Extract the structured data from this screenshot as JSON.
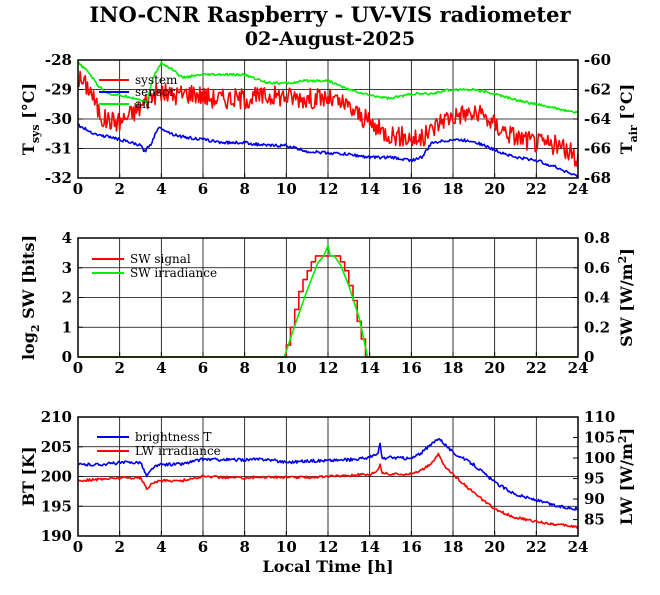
{
  "title": "INO-CNR Raspberry - UV-VIS radiometer",
  "subtitle": "02-August-2025",
  "colors": {
    "red": "#ff0000",
    "green": "#00ee00",
    "blue": "#0000ee",
    "axes": "#000000"
  },
  "chart_data": [
    {
      "type": "line",
      "xlim": [
        0,
        24
      ],
      "xticks": [
        0,
        2,
        4,
        6,
        8,
        10,
        12,
        14,
        16,
        18,
        20,
        22,
        24
      ],
      "ylabel_left": {
        "main": "T",
        "sub": "sys",
        "unit": "[°C]"
      },
      "ylim_left": [
        -32,
        -28
      ],
      "yticks_left": [
        -32,
        -31,
        -30,
        -29,
        -28
      ],
      "ylabel_right": {
        "main": "T",
        "sub": "air",
        "unit": "[°C]"
      },
      "ylim_right": [
        -68,
        -60
      ],
      "yticks_right": [
        -68,
        -66,
        -64,
        -62,
        -60
      ],
      "grid": true,
      "legend": [
        "system",
        "sensor",
        "air"
      ],
      "series": [
        {
          "name": "system",
          "axis": "left",
          "color": "#ff0000",
          "x": [
            0,
            0.3,
            0.6,
            0.9,
            1.2,
            2.0,
            3.0,
            3.5,
            4.0,
            4.5,
            5.5,
            6.5,
            8.0,
            9.5,
            11.0,
            12.0,
            13.0,
            14.5,
            15.5,
            16.5,
            17.5,
            18.5,
            19.5,
            20.0,
            21.0,
            22.0,
            23.0,
            23.5,
            24.0
          ],
          "y": [
            -28.6,
            -28.8,
            -29.0,
            -29.6,
            -30.0,
            -30.1,
            -29.6,
            -29.2,
            -29.1,
            -29.2,
            -29.1,
            -29.3,
            -29.3,
            -29.2,
            -29.3,
            -29.3,
            -29.6,
            -30.4,
            -30.6,
            -30.7,
            -30.0,
            -29.8,
            -29.9,
            -30.2,
            -30.6,
            -30.8,
            -30.9,
            -31.1,
            -31.3
          ],
          "noise": 0.35
        },
        {
          "name": "air",
          "axis": "right",
          "color": "#00ee00",
          "x": [
            0,
            0.5,
            1.0,
            1.5,
            2.0,
            2.5,
            3.0,
            3.3,
            3.6,
            4.0,
            4.5,
            5.0,
            6.0,
            7.0,
            8.0,
            9.0,
            10.0,
            11.0,
            12.0,
            13.0,
            14.0,
            15.0,
            16.0,
            17.0,
            17.5,
            18.0,
            19.0,
            20.0,
            21.0,
            22.0,
            23.0,
            24.0
          ],
          "y": [
            -60.2,
            -60.8,
            -61.8,
            -62.3,
            -62.4,
            -62.5,
            -62.7,
            -62.9,
            -61.2,
            -60.2,
            -60.6,
            -61.2,
            -61.0,
            -61.0,
            -61.0,
            -61.5,
            -61.6,
            -61.4,
            -61.4,
            -62.0,
            -62.4,
            -62.6,
            -62.3,
            -62.3,
            -62.1,
            -62.0,
            -62.0,
            -62.3,
            -62.7,
            -63.0,
            -63.3,
            -63.6
          ],
          "noise": 0.08
        },
        {
          "name": "sensor",
          "axis": "right",
          "color": "#0000ee",
          "x": [
            0,
            0.5,
            1.0,
            1.5,
            2.0,
            2.5,
            3.0,
            3.2,
            3.5,
            3.8,
            4.0,
            4.5,
            5.0,
            6.0,
            7.0,
            8.0,
            9.0,
            10.0,
            11.0,
            12.0,
            13.0,
            14.0,
            15.0,
            16.0,
            16.5,
            17.0,
            18.0,
            19.0,
            20.0,
            21.0,
            22.0,
            23.0,
            24.0
          ],
          "y": [
            -64.4,
            -64.8,
            -65.1,
            -65.2,
            -65.4,
            -65.6,
            -65.8,
            -66.2,
            -65.7,
            -64.7,
            -64.6,
            -65.0,
            -65.2,
            -65.4,
            -65.6,
            -65.6,
            -65.8,
            -65.8,
            -66.2,
            -66.3,
            -66.4,
            -66.6,
            -66.6,
            -66.8,
            -66.6,
            -65.6,
            -65.4,
            -65.5,
            -66.1,
            -66.6,
            -66.8,
            -67.3,
            -67.9
          ],
          "noise": 0.1
        }
      ]
    },
    {
      "type": "line",
      "xlim": [
        0,
        24
      ],
      "xticks": [
        0,
        2,
        4,
        6,
        8,
        10,
        12,
        14,
        16,
        18,
        20,
        22,
        24
      ],
      "ylabel_left": {
        "pre": "log",
        "sub": "2",
        "main": " SW [bits]"
      },
      "ylim_left": [
        0,
        4
      ],
      "yticks_left": [
        0,
        1,
        2,
        3,
        4
      ],
      "ylabel_right": {
        "main": "SW [W/m",
        "sup": "2",
        "unit": "]"
      },
      "ylim_right": [
        0,
        0.8
      ],
      "yticks_right": [
        0,
        0.2,
        0.4,
        0.6,
        0.8
      ],
      "grid": true,
      "legend": [
        "SW signal",
        "SW irradiance"
      ],
      "series": [
        {
          "name": "SW signal",
          "axis": "left",
          "color": "#ff0000",
          "step": true,
          "x": [
            0,
            9.8,
            10.0,
            10.2,
            10.4,
            10.6,
            10.8,
            11.0,
            11.2,
            11.4,
            11.6,
            11.8,
            12.0,
            12.2,
            12.4,
            12.6,
            12.8,
            13.0,
            13.2,
            13.4,
            13.6,
            13.8,
            14.0,
            24
          ],
          "y": [
            0,
            0,
            0.4,
            1.0,
            1.6,
            2.2,
            2.6,
            2.9,
            3.2,
            3.4,
            3.4,
            3.4,
            3.4,
            3.4,
            3.4,
            3.2,
            2.9,
            2.4,
            1.9,
            1.2,
            0.6,
            0,
            0,
            0
          ]
        },
        {
          "name": "SW irradiance",
          "axis": "right",
          "color": "#00ee00",
          "step": false,
          "x": [
            0,
            9.9,
            10.5,
            11.0,
            11.5,
            11.8,
            12.0,
            12.1,
            12.3,
            12.6,
            13.0,
            13.5,
            13.9,
            24
          ],
          "y": [
            0,
            0,
            0.25,
            0.45,
            0.63,
            0.68,
            0.75,
            0.68,
            0.68,
            0.62,
            0.48,
            0.26,
            0,
            0
          ]
        }
      ]
    },
    {
      "type": "line",
      "xlim": [
        0,
        24
      ],
      "xticks": [
        0,
        2,
        4,
        6,
        8,
        10,
        12,
        14,
        16,
        18,
        20,
        22,
        24
      ],
      "xlabel": "Local Time [h]",
      "ylabel_left": {
        "main": "BT [K]"
      },
      "ylim_left": [
        190,
        210
      ],
      "yticks_left": [
        190,
        195,
        200,
        205,
        210
      ],
      "ylabel_right": {
        "main": "LW [W/m",
        "sup": "2",
        "unit": "]"
      },
      "ylim_right": [
        81,
        110
      ],
      "yticks_right": [
        85,
        90,
        95,
        100,
        105,
        110
      ],
      "grid": true,
      "legend": [
        "brightness T",
        "LW irradiance"
      ],
      "series": [
        {
          "name": "brightness T",
          "axis": "left",
          "color": "#0000ee",
          "x": [
            0,
            1.0,
            2.0,
            3.0,
            3.3,
            3.6,
            4.0,
            5.0,
            6.0,
            7.0,
            8.0,
            9.0,
            10.0,
            11.0,
            12.0,
            13.0,
            14.0,
            14.4,
            14.5,
            14.6,
            15.0,
            16.0,
            16.5,
            17.0,
            17.3,
            17.6,
            18.0,
            19.0,
            20.0,
            21.0,
            22.0,
            23.0,
            24.0
          ],
          "y": [
            202.0,
            202.0,
            202.3,
            202.4,
            200.0,
            201.5,
            202.0,
            202.1,
            202.9,
            202.8,
            202.8,
            202.9,
            202.4,
            202.6,
            202.7,
            202.8,
            203.2,
            203.8,
            205.5,
            203.0,
            203.2,
            203.0,
            204.0,
            205.5,
            206.5,
            205.5,
            204.0,
            202.0,
            199.0,
            197.0,
            196.0,
            195.0,
            194.5
          ],
          "noise": 0.25
        },
        {
          "name": "LW irradiance",
          "axis": "right",
          "color": "#ff0000",
          "x": [
            0,
            1.0,
            2.0,
            3.0,
            3.3,
            3.6,
            4.0,
            5.0,
            6.0,
            7.0,
            8.0,
            9.0,
            10.0,
            11.0,
            12.0,
            13.0,
            14.0,
            14.4,
            14.5,
            14.6,
            15.0,
            16.0,
            16.5,
            17.0,
            17.3,
            17.6,
            18.0,
            19.0,
            20.0,
            21.0,
            22.0,
            23.0,
            24.0
          ],
          "y": [
            94.5,
            94.8,
            95.2,
            95.2,
            92.5,
            94.0,
            94.5,
            94.5,
            95.5,
            95.3,
            95.2,
            95.4,
            95.3,
            95.3,
            95.5,
            95.8,
            96.0,
            97.0,
            98.5,
            96.5,
            96.0,
            96.2,
            97.0,
            98.8,
            101.0,
            98.0,
            96.0,
            91.5,
            87.5,
            85.5,
            84.5,
            83.8,
            83.2
          ],
          "noise": 0.3
        }
      ]
    }
  ]
}
